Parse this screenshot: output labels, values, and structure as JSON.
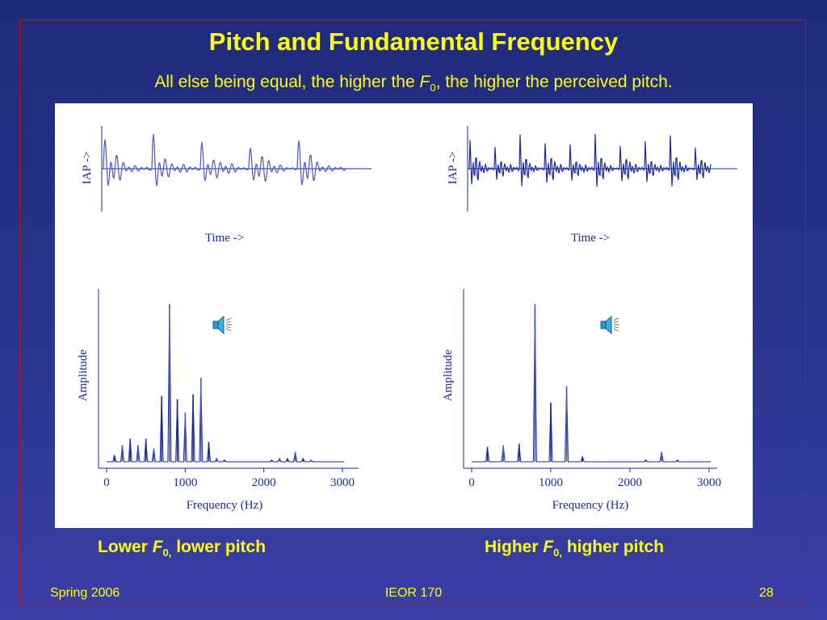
{
  "slide": {
    "title": "Pitch and Fundamental Frequency",
    "subtitle_pre": "All else being equal, the higher the ",
    "subtitle_F": "F",
    "subtitle_sub": "0",
    "subtitle_post": ", the higher the perceived pitch."
  },
  "captions": {
    "left_pre": "Lower ",
    "left_F": "F",
    "left_sub": "0,",
    "left_post": " lower pitch",
    "right_pre": "Higher ",
    "right_F": "F",
    "right_sub": "0,",
    "right_post": " higher pitch"
  },
  "footer": {
    "left": "Spring 2006",
    "center": "IEOR 170",
    "right": "28"
  },
  "colors": {
    "background": "#27338a",
    "title": "#ffff00",
    "frame": "#b01818",
    "plot": "#1a2a9a"
  },
  "icons": [
    "speaker-icon"
  ],
  "chart_data": [
    {
      "type": "line",
      "name": "lower-f0-waveform",
      "ylabel": "IAP ->",
      "xlabel": "Time ->"
    },
    {
      "type": "line",
      "name": "higher-f0-waveform",
      "ylabel": "IAP ->",
      "xlabel": "Time ->"
    },
    {
      "type": "bar",
      "name": "lower-f0-spectrum",
      "xlabel": "Frequency (Hz)",
      "ylabel": "Amplitude",
      "xticks": [
        0,
        1000,
        2000,
        3000
      ],
      "xlim": [
        0,
        3000
      ],
      "fundamental_hz": 100,
      "x": [
        100,
        200,
        300,
        400,
        500,
        600,
        700,
        800,
        900,
        1000,
        1100,
        1200,
        1300,
        1400,
        1500,
        1600,
        1700,
        1800,
        1900,
        2000,
        2100,
        2200,
        2300,
        2400,
        2500,
        2600,
        2700,
        2800,
        2900,
        3000
      ],
      "values": [
        0.08,
        0.14,
        0.18,
        0.14,
        0.18,
        0.12,
        0.44,
        1.0,
        0.42,
        0.34,
        0.45,
        0.55,
        0.16,
        0.06,
        0.05,
        0.04,
        0.04,
        0.04,
        0.04,
        0.04,
        0.05,
        0.06,
        0.06,
        0.1,
        0.06,
        0.05,
        0.04,
        0.04,
        0.04,
        0.04
      ]
    },
    {
      "type": "bar",
      "name": "higher-f0-spectrum",
      "xlabel": "Frequency (Hz)",
      "ylabel": "Amplitude",
      "xticks": [
        0,
        1000,
        2000,
        3000
      ],
      "xlim": [
        0,
        3000
      ],
      "fundamental_hz": 200,
      "x": [
        200,
        400,
        600,
        800,
        1000,
        1200,
        1400,
        1600,
        1800,
        2000,
        2200,
        2400,
        2600,
        2800,
        3000
      ],
      "values": [
        0.13,
        0.14,
        0.15,
        1.0,
        0.4,
        0.5,
        0.07,
        0.04,
        0.04,
        0.04,
        0.05,
        0.1,
        0.05,
        0.04,
        0.04
      ]
    }
  ]
}
